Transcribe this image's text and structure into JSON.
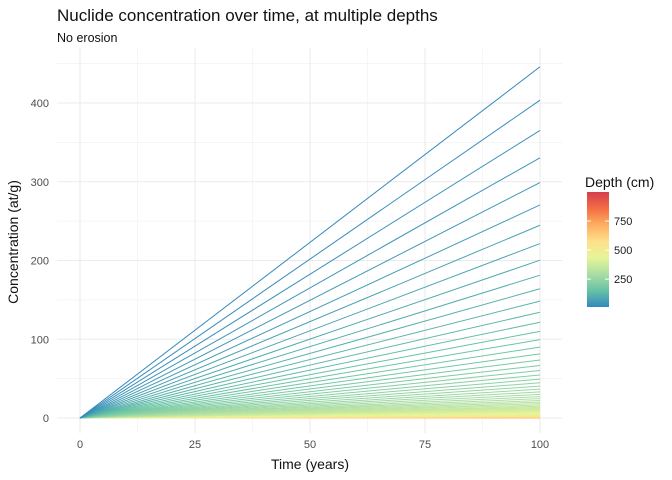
{
  "chart_data": {
    "type": "line",
    "title": "Nuclide concentration over time, at multiple depths",
    "subtitle": "No erosion",
    "xlabel": "Time (years)",
    "ylabel": "Concentration (at/g)",
    "x": [
      0,
      100
    ],
    "xlim": [
      -5,
      105
    ],
    "ylim": [
      -8,
      468
    ],
    "xticks": [
      0,
      25,
      50,
      75,
      100
    ],
    "yticks": [
      0,
      100,
      200,
      300,
      400
    ],
    "grid": true,
    "series_rule": "one line per depth; concentration grows linearly with time; slope decreases with depth",
    "depths_cm": {
      "min": 10,
      "max": 1000,
      "step": 10
    },
    "max_concentration_at_100_years": 446,
    "legend": {
      "title": "Depth (cm)",
      "placement": "right",
      "ticks": [
        250,
        500,
        750
      ],
      "range": [
        10,
        1000
      ],
      "colors": [
        "#3288bd",
        "#66c2a5",
        "#abdda4",
        "#e6f598",
        "#fee08b",
        "#fdae61",
        "#f46d43",
        "#d53e4f"
      ]
    }
  }
}
